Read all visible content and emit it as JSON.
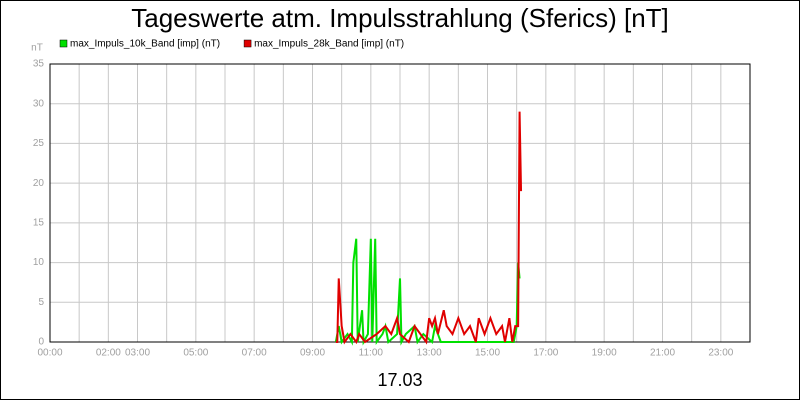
{
  "chart_data": {
    "type": "line",
    "title": "Tageswerte atm. Impulsstrahlung (Sferics) [nT]",
    "y_label": "nT",
    "x_label": "17.03",
    "xlim": [
      0,
      24
    ],
    "xticks": [
      {
        "value": 0,
        "label": "00:00"
      },
      {
        "value": 2,
        "label": "02:00"
      },
      {
        "value": 3,
        "label": "03:00"
      },
      {
        "value": 5,
        "label": "05:00"
      },
      {
        "value": 7,
        "label": "07:00"
      },
      {
        "value": 9,
        "label": "09:00"
      },
      {
        "value": 11,
        "label": "11:00"
      },
      {
        "value": 13,
        "label": "13:00"
      },
      {
        "value": 15,
        "label": "15:00"
      },
      {
        "value": 17,
        "label": "17:00"
      },
      {
        "value": 19,
        "label": "19:00"
      },
      {
        "value": 21,
        "label": "21:00"
      },
      {
        "value": 23,
        "label": "23:00"
      }
    ],
    "x_minor_ticks": [
      1,
      4,
      6,
      8,
      10,
      12,
      14,
      16,
      18,
      20,
      22,
      24
    ],
    "ylim": [
      0,
      35
    ],
    "yticks": [
      0,
      5,
      10,
      15,
      20,
      25,
      30,
      35
    ],
    "grid": true,
    "series": [
      {
        "name": "max_Impuls_10k_Band [imp] (nT)",
        "color": "#00e000",
        "x": [
          9.8,
          9.9,
          10.0,
          10.2,
          10.35,
          10.4,
          10.5,
          10.55,
          10.7,
          10.75,
          10.9,
          11.0,
          11.05,
          11.15,
          11.2,
          11.4,
          11.5,
          11.6,
          11.9,
          12.0,
          12.05,
          12.2,
          12.5,
          12.6,
          12.8,
          13.1,
          13.2,
          13.3,
          13.4,
          14.0,
          15.0,
          15.9,
          16.0,
          16.05,
          16.1
        ],
        "values": [
          0,
          2,
          0,
          1,
          0,
          10,
          13,
          0,
          4,
          0,
          1,
          13,
          0,
          13,
          0,
          1,
          2,
          0,
          1,
          8,
          0,
          1,
          2,
          0,
          1,
          0,
          2,
          1,
          0,
          0,
          0,
          0,
          2,
          10,
          8
        ]
      },
      {
        "name": "max_Impuls_28k_Band [imp] (nT)",
        "color": "#e00000",
        "x": [
          9.8,
          9.85,
          9.9,
          10.0,
          10.1,
          10.3,
          10.5,
          10.6,
          10.8,
          11.2,
          11.5,
          11.7,
          11.9,
          12.0,
          12.3,
          12.5,
          12.7,
          12.9,
          13.0,
          13.1,
          13.2,
          13.3,
          13.5,
          13.6,
          13.8,
          14.0,
          14.2,
          14.4,
          14.6,
          14.7,
          14.9,
          15.1,
          15.3,
          15.5,
          15.6,
          15.75,
          15.85,
          15.95,
          16.05,
          16.1,
          16.15
        ],
        "values": [
          0,
          0,
          8,
          2,
          0,
          1,
          0,
          1,
          0,
          1,
          2,
          1,
          3,
          1,
          0,
          2,
          1,
          0,
          3,
          2,
          3,
          1,
          4,
          2,
          1,
          3,
          1,
          2,
          0,
          3,
          1,
          3,
          1,
          2,
          0,
          3,
          0,
          2,
          2,
          29,
          19
        ]
      }
    ]
  }
}
